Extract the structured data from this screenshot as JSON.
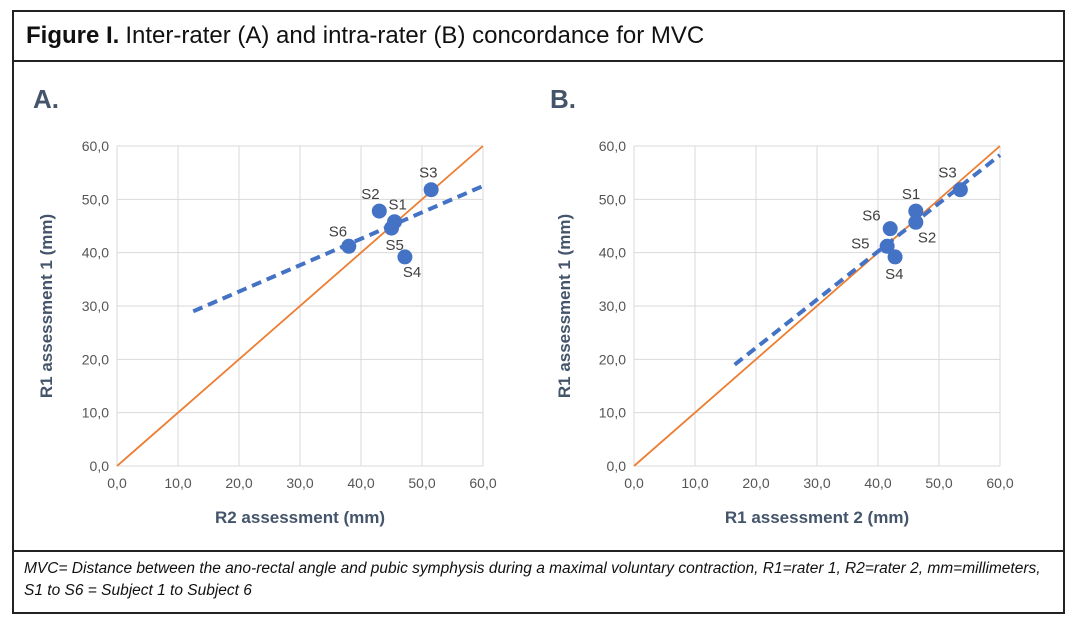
{
  "figure": {
    "title_bold": "Figure I.",
    "title_rest": "Inter-rater (A) and intra-rater (B) concordance for MVC",
    "caption": "MVC= Distance between the ano-rectal angle and pubic symphysis during a maximal voluntary contraction, R1=rater 1, R2=rater 2, mm=millimeters, S1 to S6 = Subject 1 to Subject 6"
  },
  "colors": {
    "points": "#4472C4",
    "trend": "#4472C4",
    "identity": "#ED7D31",
    "grid": "#D9D9D9",
    "axis_text": "#44546A"
  },
  "chart_data": [
    {
      "type": "scatter",
      "panel": "A.",
      "xlabel": "R2 assessment (mm)",
      "ylabel": "R1 assessment 1 (mm)",
      "xlim": [
        0,
        60
      ],
      "ylim": [
        0,
        60
      ],
      "xticks": [
        "0,0",
        "10,0",
        "20,0",
        "30,0",
        "40,0",
        "50,0",
        "60,0"
      ],
      "yticks": [
        "0,0",
        "10,0",
        "20,0",
        "30,0",
        "40,0",
        "50,0",
        "60,0"
      ],
      "grid": true,
      "points": [
        {
          "label": "S1",
          "x": 45.5,
          "y": 45.8
        },
        {
          "label": "S2",
          "x": 43.0,
          "y": 47.8
        },
        {
          "label": "S3",
          "x": 51.5,
          "y": 51.8
        },
        {
          "label": "S4",
          "x": 47.2,
          "y": 39.2
        },
        {
          "label": "S5",
          "x": 45.0,
          "y": 44.6
        },
        {
          "label": "S6",
          "x": 38.0,
          "y": 41.2
        }
      ],
      "trendline": {
        "x": [
          12.5,
          60.0
        ],
        "y": [
          29.0,
          52.5
        ]
      },
      "identity_line": {
        "x": [
          0,
          60
        ],
        "y": [
          0,
          60
        ]
      }
    },
    {
      "type": "scatter",
      "panel": "B.",
      "xlabel": "R1 assessment 2 (mm)",
      "ylabel": "R1 assessment 1 (mm)",
      "xlim": [
        0,
        60
      ],
      "ylim": [
        0,
        60
      ],
      "xticks": [
        "0,0",
        "10,0",
        "20,0",
        "30,0",
        "40,0",
        "50,0",
        "60,0"
      ],
      "yticks": [
        "0,0",
        "10,0",
        "20,0",
        "30,0",
        "40,0",
        "50,0",
        "60,0"
      ],
      "grid": true,
      "points": [
        {
          "label": "S1",
          "x": 46.2,
          "y": 47.8
        },
        {
          "label": "S2",
          "x": 46.2,
          "y": 45.7
        },
        {
          "label": "S3",
          "x": 53.5,
          "y": 51.8
        },
        {
          "label": "S4",
          "x": 42.8,
          "y": 39.2
        },
        {
          "label": "S5",
          "x": 41.5,
          "y": 41.2
        },
        {
          "label": "S6",
          "x": 42.0,
          "y": 44.5
        }
      ],
      "trendline": {
        "x": [
          16.5,
          60.0
        ],
        "y": [
          19.0,
          58.3
        ]
      },
      "identity_line": {
        "x": [
          0,
          60
        ],
        "y": [
          0,
          60
        ]
      }
    }
  ]
}
